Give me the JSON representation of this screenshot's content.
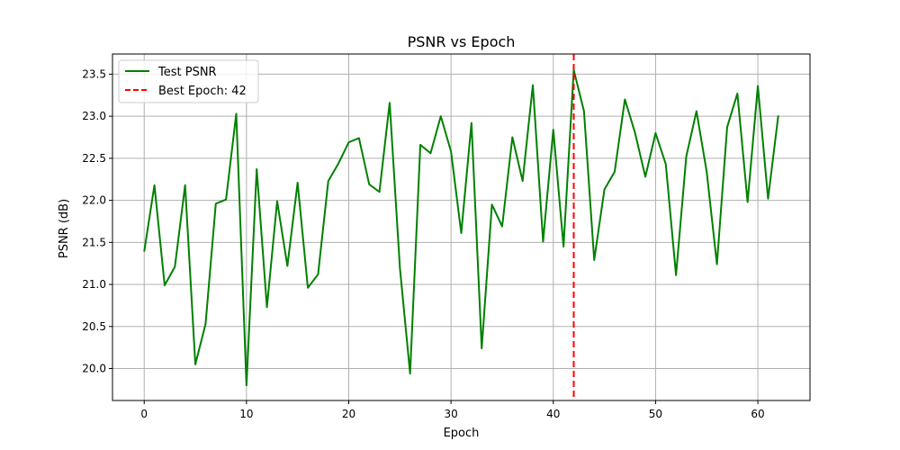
{
  "chart_data": {
    "type": "line",
    "title": "PSNR vs Epoch",
    "xlabel": "Epoch",
    "ylabel": "PSNR (dB)",
    "xlim": [
      -3.1,
      65.1
    ],
    "ylim": [
      19.62,
      23.74
    ],
    "xticks": [
      0,
      10,
      20,
      30,
      40,
      50,
      60
    ],
    "yticks": [
      20.0,
      20.5,
      21.0,
      21.5,
      22.0,
      22.5,
      23.0,
      23.5
    ],
    "ytick_labels": [
      "20.0",
      "20.5",
      "21.0",
      "21.5",
      "22.0",
      "22.5",
      "23.0",
      "23.5"
    ],
    "grid": true,
    "legend_position": "top-left",
    "series": [
      {
        "name": "Test PSNR",
        "color": "#008000",
        "x": [
          0,
          1,
          2,
          3,
          4,
          5,
          6,
          7,
          8,
          9,
          10,
          11,
          12,
          13,
          14,
          15,
          16,
          17,
          18,
          19,
          20,
          21,
          22,
          23,
          24,
          25,
          26,
          27,
          28,
          29,
          30,
          31,
          32,
          33,
          34,
          35,
          36,
          37,
          38,
          39,
          40,
          41,
          42,
          43,
          44,
          45,
          46,
          47,
          48,
          49,
          50,
          51,
          52,
          53,
          54,
          55,
          56,
          57,
          58,
          59,
          60,
          61,
          62
        ],
        "y": [
          21.39,
          22.18,
          20.99,
          21.21,
          22.18,
          20.05,
          20.53,
          21.96,
          22.01,
          23.03,
          19.8,
          22.37,
          20.73,
          21.99,
          21.22,
          22.21,
          20.96,
          21.12,
          22.23,
          22.44,
          22.69,
          22.74,
          22.19,
          22.1,
          23.16,
          21.2,
          19.94,
          22.66,
          22.56,
          23.0,
          22.58,
          21.61,
          22.92,
          20.24,
          21.95,
          21.69,
          22.75,
          22.23,
          23.37,
          21.51,
          22.84,
          21.45,
          23.55,
          23.06,
          21.29,
          22.13,
          22.34,
          23.2,
          22.8,
          22.28,
          22.8,
          22.43,
          21.11,
          22.52,
          23.06,
          22.34,
          21.24,
          22.87,
          23.27,
          21.98,
          23.36,
          22.02,
          23.01
        ]
      }
    ],
    "markers": [
      {
        "name": "Best Epoch: 42",
        "x": 42,
        "color": "#ff0000",
        "style": "dashed"
      }
    ]
  }
}
